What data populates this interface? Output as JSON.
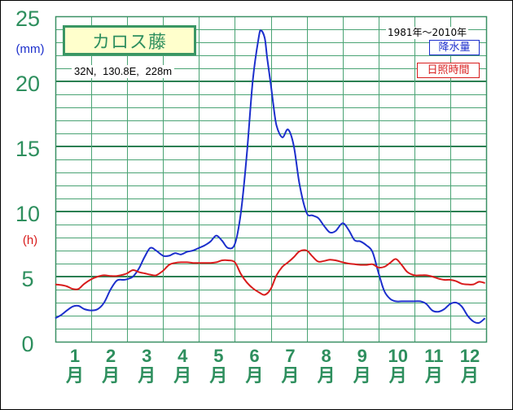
{
  "station": {
    "name": "カロス藤",
    "location": "32N, 130.8E, 228m"
  },
  "period": "1981年～2010年",
  "chart_data": {
    "type": "line",
    "grid": true,
    "legend_position": "top-right",
    "ylim": [
      0,
      25
    ],
    "y_ticks": [
      0,
      5,
      10,
      15,
      20,
      25
    ],
    "months": [
      "1",
      "2",
      "3",
      "4",
      "5",
      "6",
      "7",
      "8",
      "9",
      "10",
      "11",
      "12"
    ],
    "month_unit": "月",
    "series": [
      {
        "name": "降水量",
        "axis_label": "(mm)",
        "color": "#1c2fcc",
        "points": [
          [
            "01-01",
            1.8
          ],
          [
            "01-06",
            2.05
          ],
          [
            "01-11",
            2.4
          ],
          [
            "01-16",
            2.7
          ],
          [
            "01-21",
            2.75
          ],
          [
            "01-26",
            2.5
          ],
          [
            "02-01",
            2.4
          ],
          [
            "02-06",
            2.5
          ],
          [
            "02-11",
            3.0
          ],
          [
            "02-16",
            4.0
          ],
          [
            "02-21",
            4.7
          ],
          [
            "02-26",
            4.75
          ],
          [
            "03-01",
            4.8
          ],
          [
            "03-06",
            5.0
          ],
          [
            "03-11",
            5.6
          ],
          [
            "03-16",
            6.5
          ],
          [
            "03-21",
            7.2
          ],
          [
            "03-26",
            7.0
          ],
          [
            "04-01",
            6.6
          ],
          [
            "04-06",
            6.6
          ],
          [
            "04-11",
            6.8
          ],
          [
            "04-16",
            6.7
          ],
          [
            "04-21",
            6.9
          ],
          [
            "04-26",
            7.0
          ],
          [
            "05-01",
            7.2
          ],
          [
            "05-06",
            7.4
          ],
          [
            "05-11",
            7.7
          ],
          [
            "05-16",
            8.15
          ],
          [
            "05-21",
            7.75
          ],
          [
            "05-26",
            7.2
          ],
          [
            "06-01",
            7.5
          ],
          [
            "06-06",
            9.9
          ],
          [
            "06-11",
            14.4
          ],
          [
            "06-16",
            20.1
          ],
          [
            "06-21",
            23.4
          ],
          [
            "06-23",
            23.9
          ],
          [
            "06-26",
            23.3
          ],
          [
            "06-28",
            21.8
          ],
          [
            "07-01",
            19.8
          ],
          [
            "07-03",
            18.4
          ],
          [
            "07-06",
            16.6
          ],
          [
            "07-11",
            15.7
          ],
          [
            "07-16",
            16.3
          ],
          [
            "07-21",
            15.0
          ],
          [
            "07-26",
            12.0
          ],
          [
            "08-01",
            9.9
          ],
          [
            "08-06",
            9.7
          ],
          [
            "08-11",
            9.5
          ],
          [
            "08-16",
            8.9
          ],
          [
            "08-21",
            8.4
          ],
          [
            "08-26",
            8.5
          ],
          [
            "09-01",
            9.1
          ],
          [
            "09-06",
            8.6
          ],
          [
            "09-11",
            7.8
          ],
          [
            "09-16",
            7.7
          ],
          [
            "09-21",
            7.4
          ],
          [
            "09-26",
            6.9
          ],
          [
            "10-01",
            5.3
          ],
          [
            "10-06",
            3.9
          ],
          [
            "10-11",
            3.3
          ],
          [
            "10-16",
            3.1
          ],
          [
            "10-21",
            3.1
          ],
          [
            "10-26",
            3.1
          ],
          [
            "11-01",
            3.1
          ],
          [
            "11-06",
            3.1
          ],
          [
            "11-11",
            2.9
          ],
          [
            "11-16",
            2.4
          ],
          [
            "11-21",
            2.3
          ],
          [
            "11-26",
            2.5
          ],
          [
            "12-01",
            2.9
          ],
          [
            "12-06",
            3.0
          ],
          [
            "12-11",
            2.7
          ],
          [
            "12-16",
            2.0
          ],
          [
            "12-21",
            1.55
          ],
          [
            "12-26",
            1.45
          ],
          [
            "12-31",
            1.8
          ]
        ]
      },
      {
        "name": "日照時間",
        "axis_label": "(h)",
        "color": "#d81c1c",
        "points": [
          [
            "01-01",
            4.4
          ],
          [
            "01-06",
            4.35
          ],
          [
            "01-11",
            4.25
          ],
          [
            "01-16",
            4.05
          ],
          [
            "01-21",
            4.05
          ],
          [
            "01-26",
            4.45
          ],
          [
            "02-01",
            4.8
          ],
          [
            "02-06",
            5.0
          ],
          [
            "02-11",
            5.1
          ],
          [
            "02-16",
            5.05
          ],
          [
            "02-21",
            5.05
          ],
          [
            "02-26",
            5.15
          ],
          [
            "03-01",
            5.25
          ],
          [
            "03-06",
            5.5
          ],
          [
            "03-11",
            5.35
          ],
          [
            "03-16",
            5.25
          ],
          [
            "03-21",
            5.15
          ],
          [
            "03-26",
            5.1
          ],
          [
            "04-01",
            5.45
          ],
          [
            "04-06",
            5.9
          ],
          [
            "04-11",
            6.05
          ],
          [
            "04-16",
            6.1
          ],
          [
            "04-21",
            6.1
          ],
          [
            "04-26",
            6.05
          ],
          [
            "05-01",
            6.05
          ],
          [
            "05-06",
            6.05
          ],
          [
            "05-11",
            6.05
          ],
          [
            "05-16",
            6.1
          ],
          [
            "05-21",
            6.25
          ],
          [
            "05-26",
            6.25
          ],
          [
            "06-01",
            6.1
          ],
          [
            "06-06",
            5.2
          ],
          [
            "06-11",
            4.55
          ],
          [
            "06-16",
            4.1
          ],
          [
            "06-21",
            3.8
          ],
          [
            "06-26",
            3.6
          ],
          [
            "07-01",
            4.05
          ],
          [
            "07-06",
            5.1
          ],
          [
            "07-11",
            5.75
          ],
          [
            "07-16",
            6.1
          ],
          [
            "07-21",
            6.5
          ],
          [
            "07-26",
            6.95
          ],
          [
            "08-01",
            7.0
          ],
          [
            "08-06",
            6.55
          ],
          [
            "08-11",
            6.15
          ],
          [
            "08-16",
            6.2
          ],
          [
            "08-21",
            6.3
          ],
          [
            "08-26",
            6.25
          ],
          [
            "09-01",
            6.1
          ],
          [
            "09-06",
            6.0
          ],
          [
            "09-11",
            5.95
          ],
          [
            "09-16",
            5.9
          ],
          [
            "09-21",
            5.9
          ],
          [
            "09-26",
            5.95
          ],
          [
            "10-01",
            5.7
          ],
          [
            "10-06",
            5.75
          ],
          [
            "10-11",
            6.05
          ],
          [
            "10-16",
            6.35
          ],
          [
            "10-21",
            5.9
          ],
          [
            "10-26",
            5.35
          ],
          [
            "11-01",
            5.1
          ],
          [
            "11-06",
            5.1
          ],
          [
            "11-11",
            5.1
          ],
          [
            "11-16",
            5.0
          ],
          [
            "11-21",
            4.85
          ],
          [
            "11-26",
            4.75
          ],
          [
            "12-01",
            4.75
          ],
          [
            "12-06",
            4.65
          ],
          [
            "12-11",
            4.45
          ],
          [
            "12-16",
            4.4
          ],
          [
            "12-21",
            4.4
          ],
          [
            "12-26",
            4.6
          ],
          [
            "12-31",
            4.5
          ]
        ]
      }
    ]
  }
}
